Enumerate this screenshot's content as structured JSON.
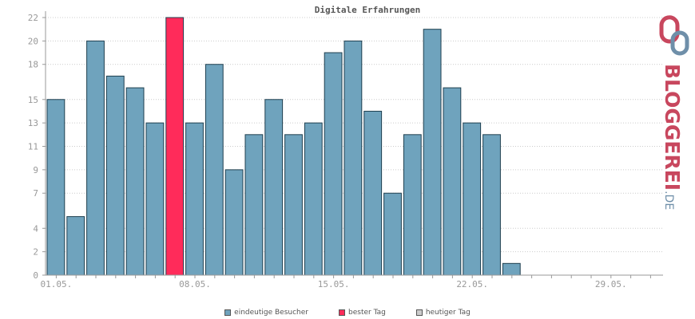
{
  "colors": {
    "visitors": "#6fa3bd",
    "best_day": "#ff2b5a",
    "today": "#cccccc",
    "bar_stroke": "#1f3f4f",
    "grid": "#cccccc",
    "axis": "#999999",
    "brand_red": "#c8475e",
    "brand_blue": "#6f8fa9"
  },
  "logo": {
    "word": "BLOGGEREI",
    "tld": ".DE"
  },
  "legend": {
    "visitors_label": "eindeutige Besucher",
    "best_label": "bester Tag",
    "today_label": "heutiger Tag"
  },
  "chart_data": {
    "type": "bar",
    "title": "Digitale Erfahrungen",
    "xlabel": "",
    "ylabel": "",
    "ylim": [
      0,
      22
    ],
    "y_ticks": [
      0,
      2,
      4,
      7,
      9,
      11,
      13,
      15,
      18,
      20,
      22
    ],
    "x_tick_labels": [
      "01.05.",
      "08.05.",
      "15.05.",
      "22.05.",
      "29.05."
    ],
    "x_tick_days": [
      1,
      8,
      15,
      22,
      29
    ],
    "days": [
      1,
      2,
      3,
      4,
      5,
      6,
      7,
      8,
      9,
      10,
      11,
      12,
      13,
      14,
      15,
      16,
      17,
      18,
      19,
      20,
      21,
      22,
      23,
      24,
      25,
      26,
      27,
      28,
      29,
      30,
      31
    ],
    "values": [
      15,
      5,
      20,
      17,
      16,
      13,
      22,
      13,
      18,
      9,
      12,
      15,
      12,
      13,
      19,
      20,
      14,
      7,
      12,
      21,
      16,
      13,
      12,
      1,
      0,
      0,
      0,
      0,
      0,
      0,
      0
    ],
    "best_day": 7,
    "grid": true,
    "legend_position": "bottom"
  }
}
